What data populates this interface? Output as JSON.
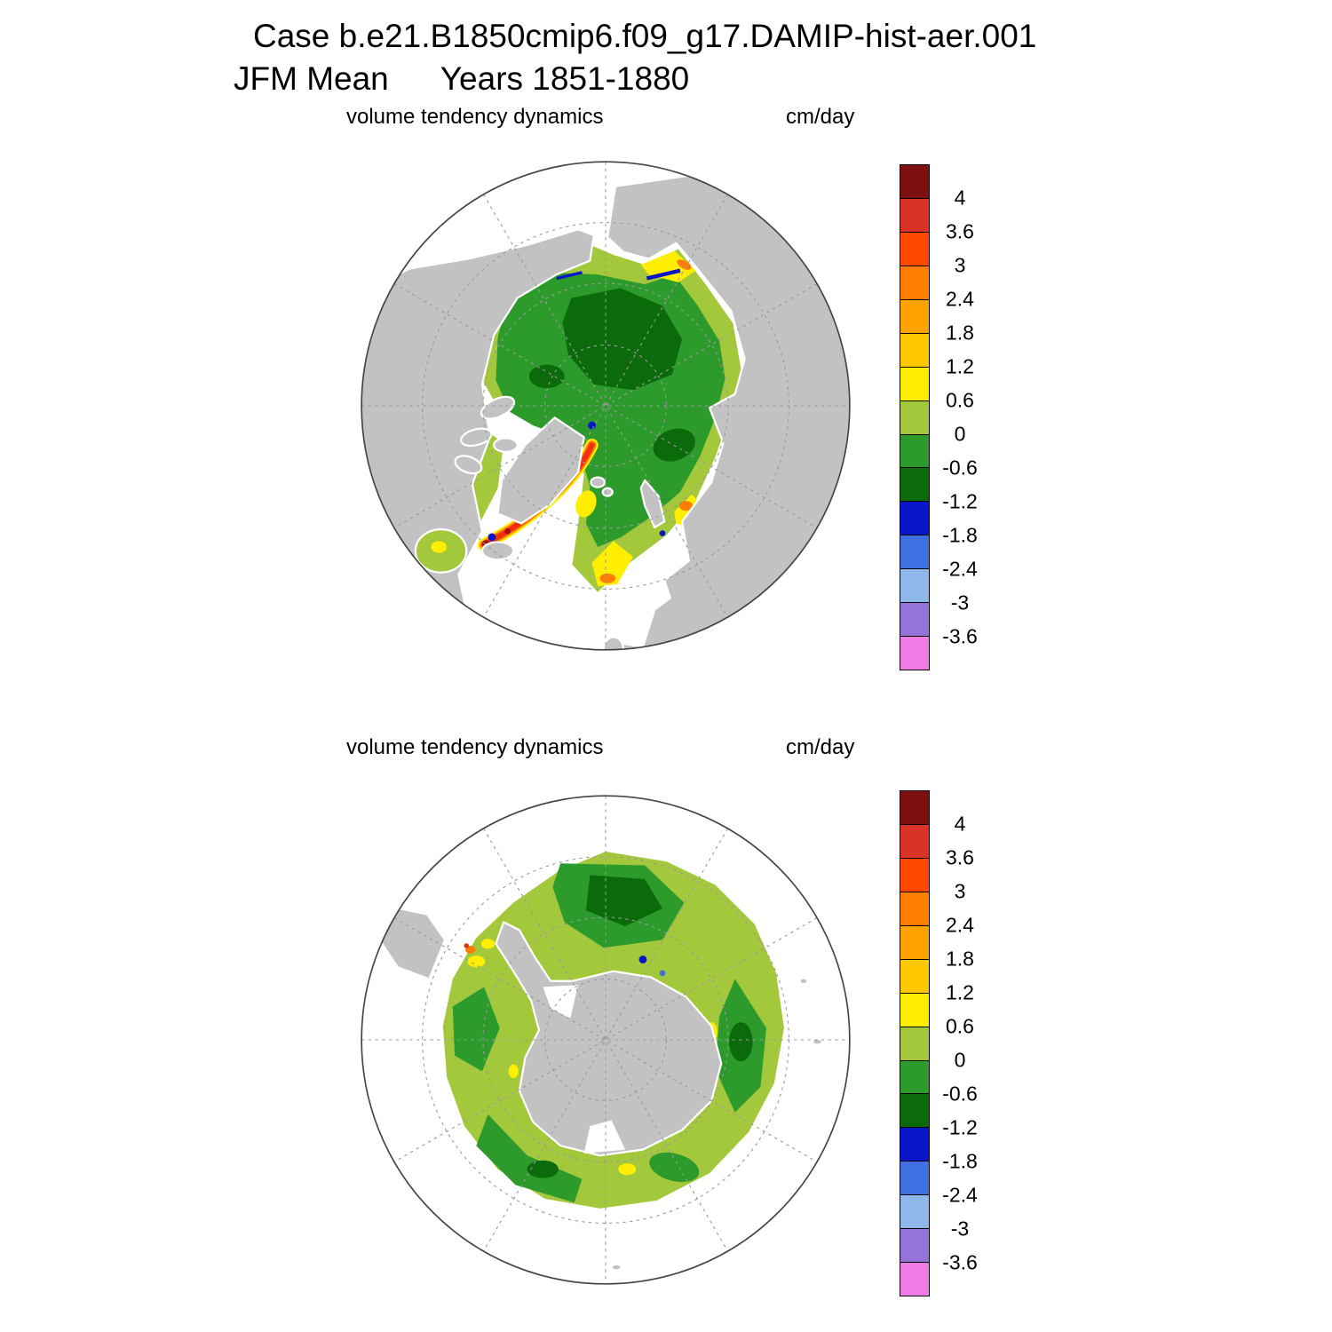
{
  "title": {
    "line1": "Case b.e21.B1850cmip6.f09_g17.DAMIP-hist-aer.001",
    "season": "JFM Mean",
    "years": "Years 1851-1880"
  },
  "panels": [
    {
      "variable_label": "volume tendency dynamics",
      "units_label": "cm/day",
      "hemisphere": "north"
    },
    {
      "variable_label": "volume tendency dynamics",
      "units_label": "cm/day",
      "hemisphere": "south"
    }
  ],
  "colorbar": {
    "units": "cm/day",
    "tick_labels": [
      "4",
      "3.6",
      "3",
      "2.4",
      "1.8",
      "1.2",
      "0.6",
      "0",
      "-0.6",
      "-1.2",
      "-1.8",
      "-2.4",
      "-3",
      "-3.6"
    ],
    "colors": [
      "#7e1010",
      "#d93327",
      "#ff4800",
      "#ff7d00",
      "#ffa200",
      "#ffc800",
      "#ffee00",
      "#a4c83c",
      "#2c9b2c",
      "#0b6b0b",
      "#0a14c8",
      "#3f6fe0",
      "#8fb8ea",
      "#9673d8",
      "#ee7ce4"
    ]
  },
  "map_style": {
    "land_color": "#c2c2c2",
    "ocean_color": "#ffffff",
    "graticule_color": "#9a9a9a"
  },
  "chart_data": [
    {
      "type": "heatmap",
      "title": "volume tendency dynamics",
      "units": "cm/day",
      "projection": "north polar stereographic",
      "season": "JFM",
      "years": "1851-1880",
      "contour_levels": [
        -3.6,
        -3,
        -2.4,
        -1.8,
        -1.2,
        -0.6,
        0,
        0.6,
        1.2,
        1.8,
        2.4,
        3,
        3.6,
        4
      ],
      "palette_top_to_bottom": [
        "#7e1010",
        "#d93327",
        "#ff4800",
        "#ff7d00",
        "#ffa200",
        "#ffc800",
        "#ffee00",
        "#a4c83c",
        "#2c9b2c",
        "#0b6b0b",
        "#0a14c8",
        "#3f6fe0",
        "#8fb8ea",
        "#9673d8",
        "#ee7ce4"
      ],
      "legend_position": "right vertical colorbar",
      "regions": [
        {
          "area": "central Arctic Ocean pack",
          "value_range": "-0.6 to 0"
        },
        {
          "area": "core patches near pole",
          "value_range": "-1.2 to -0.6"
        },
        {
          "area": "marginal ice fringe (Bering, Barents, Baffin, Hudson)",
          "value_range": "0 to 0.6"
        },
        {
          "area": "Siberian and Chukchi coastal bands, Kara Sea spots",
          "value_range": "0.6 to 2.4"
        },
        {
          "area": "East Greenland current streak",
          "value_range": "1.8 to above 4"
        },
        {
          "area": "narrow coastal leads (north coasts, Baffin Bay, Denmark Strait)",
          "value_range": "-2.4 to -1.2"
        }
      ]
    },
    {
      "type": "heatmap",
      "title": "volume tendency dynamics",
      "units": "cm/day",
      "projection": "south polar stereographic",
      "season": "JFM",
      "years": "1851-1880",
      "contour_levels": [
        -3.6,
        -3,
        -2.4,
        -1.8,
        -1.2,
        -0.6,
        0,
        0.6,
        1.2,
        1.8,
        2.4,
        3,
        3.6,
        4
      ],
      "palette_top_to_bottom": [
        "#7e1010",
        "#d93327",
        "#ff4800",
        "#ff7d00",
        "#ffa200",
        "#ffc800",
        "#ffee00",
        "#a4c83c",
        "#2c9b2c",
        "#0b6b0b",
        "#0a14c8",
        "#3f6fe0",
        "#8fb8ea",
        "#9673d8",
        "#ee7ce4"
      ],
      "legend_position": "right vertical colorbar",
      "regions": [
        {
          "area": "circumpolar pack ring",
          "value_range": "0 to 0.6"
        },
        {
          "area": "large patches north of coast (top, right, lower-left sectors)",
          "value_range": "-1.2 to 0"
        },
        {
          "area": "hot spot west of Antarctic Peninsula",
          "value_range": "1.2 to 3.6"
        },
        {
          "area": "scattered coastal spots",
          "value_range": "-1.8 to -1.2 and 0.6 to 1.2"
        }
      ]
    }
  ]
}
